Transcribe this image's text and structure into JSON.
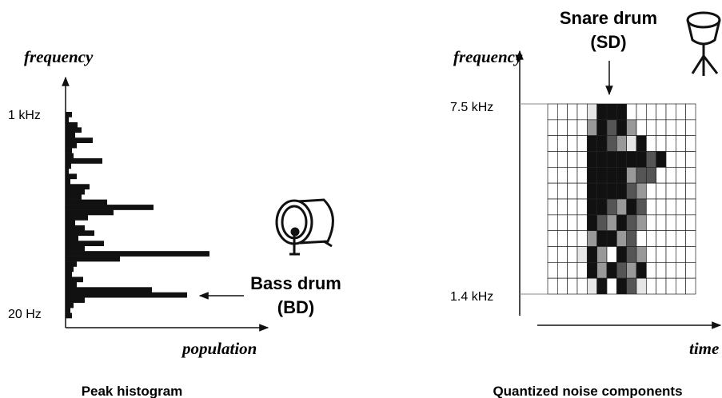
{
  "left": {
    "y_label": "frequency",
    "top_tick": "1 kHz",
    "bottom_tick": "20 Hz",
    "x_label": "population",
    "annotation": [
      "Bass drum",
      "(BD)"
    ],
    "caption": "Peak histogram"
  },
  "right": {
    "y_label": "frequency",
    "top_tick": "7.5 kHz",
    "bottom_tick": "1.4 kHz",
    "x_label": "time",
    "annotation": [
      "Snare drum",
      "(SD)"
    ],
    "caption": "Quantized noise components"
  }
}
